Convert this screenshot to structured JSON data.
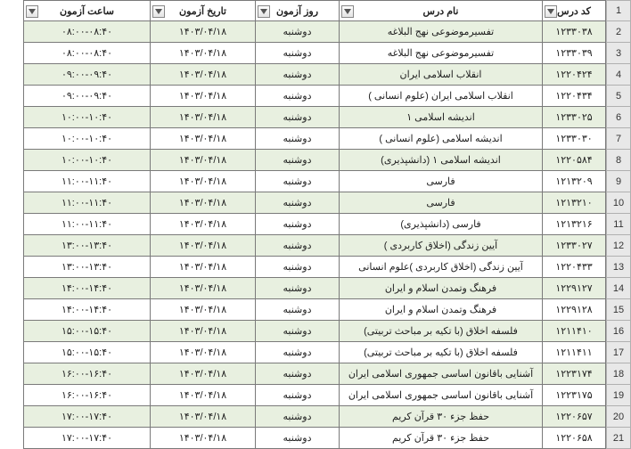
{
  "columns": [
    {
      "key": "code",
      "label": "کد درس",
      "class": "c-code"
    },
    {
      "key": "name",
      "label": "نام درس",
      "class": "c-name"
    },
    {
      "key": "day",
      "label": "روز آزمون",
      "class": "c-day"
    },
    {
      "key": "date",
      "label": "تاریخ آزمون",
      "class": "c-date"
    },
    {
      "key": "time",
      "label": "ساعت آزمون",
      "class": "c-time"
    }
  ],
  "rows": [
    {
      "n": 2,
      "code": "۱۲۳۳۰۳۸",
      "name": "تفسیرموضوعی نهج البلاغه",
      "day": "دوشنبه",
      "date": "۱۴۰۳/۰۴/۱۸",
      "time": "۰۸:۰۰-۰۸:۴۰"
    },
    {
      "n": 3,
      "code": "۱۲۳۳۰۳۹",
      "name": "تفسیرموضوعی نهج البلاغه",
      "day": "دوشنبه",
      "date": "۱۴۰۳/۰۴/۱۸",
      "time": "۰۸:۰۰-۰۸:۴۰"
    },
    {
      "n": 4,
      "code": "۱۲۲۰۴۲۴",
      "name": "انقلاب اسلامی ایران",
      "day": "دوشنبه",
      "date": "۱۴۰۳/۰۴/۱۸",
      "time": "۰۹:۰۰-۰۹:۴۰"
    },
    {
      "n": 5,
      "code": "۱۲۲۰۴۳۴",
      "name": "انقلاب اسلامی ایران (علوم انسانی )",
      "day": "دوشنبه",
      "date": "۱۴۰۳/۰۴/۱۸",
      "time": "۰۹:۰۰-۰۹:۴۰"
    },
    {
      "n": 6,
      "code": "۱۲۳۳۰۲۵",
      "name": "اندیشه اسلامی ۱",
      "day": "دوشنبه",
      "date": "۱۴۰۳/۰۴/۱۸",
      "time": "۱۰:۰۰-۱۰:۴۰"
    },
    {
      "n": 7,
      "code": "۱۲۳۳۰۳۰",
      "name": "اندیشه اسلامی (علوم انسانی )",
      "day": "دوشنبه",
      "date": "۱۴۰۳/۰۴/۱۸",
      "time": "۱۰:۰۰-۱۰:۴۰"
    },
    {
      "n": 8,
      "code": "۱۲۲۰۵۸۴",
      "name": "اندیشه اسلامی ۱ (دانشپذیری)",
      "day": "دوشنبه",
      "date": "۱۴۰۳/۰۴/۱۸",
      "time": "۱۰:۰۰-۱۰:۴۰"
    },
    {
      "n": 9,
      "code": "۱۲۱۳۲۰۹",
      "name": "فارسی",
      "day": "دوشنبه",
      "date": "۱۴۰۳/۰۴/۱۸",
      "time": "۱۱:۰۰-۱۱:۴۰"
    },
    {
      "n": 10,
      "code": "۱۲۱۳۲۱۰",
      "name": "فارسی",
      "day": "دوشنبه",
      "date": "۱۴۰۳/۰۴/۱۸",
      "time": "۱۱:۰۰-۱۱:۴۰"
    },
    {
      "n": 11,
      "code": "۱۲۱۳۲۱۶",
      "name": "فارسی (دانشپذیری)",
      "day": "دوشنبه",
      "date": "۱۴۰۳/۰۴/۱۸",
      "time": "۱۱:۰۰-۱۱:۴۰"
    },
    {
      "n": 12,
      "code": "۱۲۳۳۰۲۷",
      "name": "آیین زندگی (اخلاق کاربردی )",
      "day": "دوشنبه",
      "date": "۱۴۰۳/۰۴/۱۸",
      "time": "۱۳:۰۰-۱۳:۴۰"
    },
    {
      "n": 13,
      "code": "۱۲۲۰۴۳۳",
      "name": "آیین زندگی (اخلاق کاربردی )علوم انسانی",
      "day": "دوشنبه",
      "date": "۱۴۰۳/۰۴/۱۸",
      "time": "۱۳:۰۰-۱۳:۴۰"
    },
    {
      "n": 14,
      "code": "۱۲۲۹۱۲۷",
      "name": "فرهنگ وتمدن اسلام و ایران",
      "day": "دوشنبه",
      "date": "۱۴۰۳/۰۴/۱۸",
      "time": "۱۴:۰۰-۱۴:۴۰"
    },
    {
      "n": 15,
      "code": "۱۲۲۹۱۲۸",
      "name": "فرهنگ وتمدن اسلام و ایران",
      "day": "دوشنبه",
      "date": "۱۴۰۳/۰۴/۱۸",
      "time": "۱۴:۰۰-۱۴:۴۰"
    },
    {
      "n": 16,
      "code": "۱۲۱۱۴۱۰",
      "name": "فلسفه اخلاق (با تکیه بر مباحث تربیتی)",
      "day": "دوشنبه",
      "date": "۱۴۰۳/۰۴/۱۸",
      "time": "۱۵:۰۰-۱۵:۴۰"
    },
    {
      "n": 17,
      "code": "۱۲۱۱۴۱۱",
      "name": "فلسفه اخلاق (با تکیه بر مباحث تربیتی)",
      "day": "دوشنبه",
      "date": "۱۴۰۳/۰۴/۱۸",
      "time": "۱۵:۰۰-۱۵:۴۰"
    },
    {
      "n": 18,
      "code": "۱۲۲۳۱۷۴",
      "name": "آشنایی باقانون اساسی جمهوری اسلامی ایران",
      "day": "دوشنبه",
      "date": "۱۴۰۳/۰۴/۱۸",
      "time": "۱۶:۰۰-۱۶:۴۰"
    },
    {
      "n": 19,
      "code": "۱۲۲۳۱۷۵",
      "name": "آشنایی باقانون اساسی جمهوری اسلامی ایران",
      "day": "دوشنبه",
      "date": "۱۴۰۳/۰۴/۱۸",
      "time": "۱۶:۰۰-۱۶:۴۰"
    },
    {
      "n": 20,
      "code": "۱۲۲۰۶۵۷",
      "name": "حفظ جزء ۳۰ قرآن کریم",
      "day": "دوشنبه",
      "date": "۱۴۰۳/۰۴/۱۸",
      "time": "۱۷:۰۰-۱۷:۴۰"
    },
    {
      "n": 21,
      "code": "۱۲۲۰۶۵۸",
      "name": "حفظ جزء ۳۰ قرآن کریم",
      "day": "دوشنبه",
      "date": "۱۴۰۳/۰۴/۱۸",
      "time": "۱۷:۰۰-۱۷:۴۰"
    }
  ],
  "colors": {
    "row_header_bg": "#e8e8e8",
    "even_bg": "#e8f0e0",
    "odd_bg": "#ffffff",
    "border": "#7a7a7a"
  }
}
